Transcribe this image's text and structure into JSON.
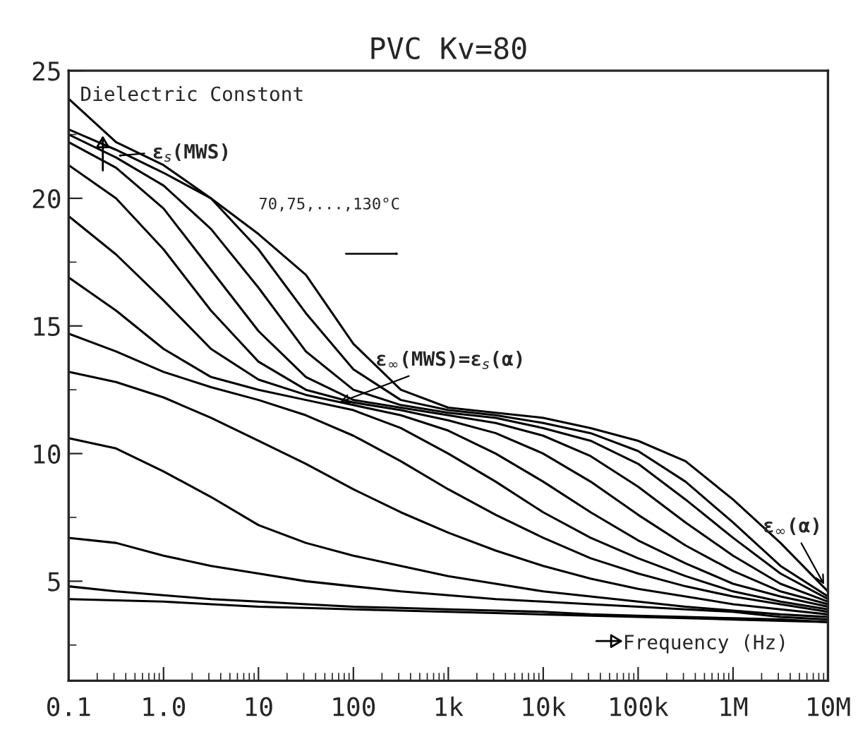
{
  "chart_data": {
    "type": "line",
    "title": "PVC Kv=80",
    "xlabel": "Frequency (Hz)",
    "ylabel": "Dielectric Constont",
    "log": "x",
    "grid": false,
    "legend": false,
    "marker": "none",
    "line_style": "solid",
    "x": [
      0.1,
      0.316,
      1,
      3.16,
      10,
      31.6,
      100,
      316,
      1000,
      3160,
      10000,
      31600,
      100000,
      316000,
      1000000,
      3160000,
      10000000
    ],
    "xlim": [
      0.1,
      10000000
    ],
    "xticks": [
      {
        "value": 0.1,
        "label": "0.1"
      },
      {
        "value": 1,
        "label": "1.0"
      },
      {
        "value": 10,
        "label": "10"
      },
      {
        "value": 100,
        "label": "100"
      },
      {
        "value": 1000,
        "label": "1k"
      },
      {
        "value": 10000,
        "label": "10k"
      },
      {
        "value": 100000,
        "label": "100k"
      },
      {
        "value": 1000000,
        "label": "1M"
      },
      {
        "value": 10000000,
        "label": "10M"
      }
    ],
    "ylim": [
      1.1,
      25
    ],
    "yticks": [
      5,
      10,
      15,
      20,
      25
    ],
    "series": [
      {
        "color": "#000000",
        "values": [
          4.3,
          4.25,
          4.2,
          4.1,
          4.0,
          3.95,
          3.9,
          3.85,
          3.8,
          3.75,
          3.7,
          3.65,
          3.6,
          3.55,
          3.5,
          3.45,
          3.4
        ]
      },
      {
        "color": "#000000",
        "values": [
          4.8,
          4.6,
          4.45,
          4.3,
          4.2,
          4.1,
          4.0,
          3.95,
          3.9,
          3.85,
          3.8,
          3.7,
          3.65,
          3.6,
          3.55,
          3.5,
          3.4
        ]
      },
      {
        "color": "#000000",
        "values": [
          6.7,
          6.5,
          6.0,
          5.6,
          5.3,
          5.0,
          4.8,
          4.6,
          4.45,
          4.3,
          4.2,
          4.1,
          4.0,
          3.9,
          3.8,
          3.6,
          3.5
        ]
      },
      {
        "color": "#000000",
        "values": [
          10.6,
          10.2,
          9.3,
          8.3,
          7.2,
          6.5,
          6.0,
          5.6,
          5.2,
          4.9,
          4.6,
          4.4,
          4.2,
          4.0,
          3.85,
          3.7,
          3.6
        ]
      },
      {
        "color": "#000000",
        "values": [
          13.2,
          12.8,
          12.2,
          11.4,
          10.5,
          9.6,
          8.6,
          7.7,
          6.9,
          6.2,
          5.6,
          5.1,
          4.7,
          4.4,
          4.1,
          3.9,
          3.7
        ]
      },
      {
        "color": "#000000",
        "values": [
          14.7,
          14.0,
          13.2,
          12.6,
          12.1,
          11.5,
          10.7,
          9.7,
          8.6,
          7.6,
          6.7,
          5.9,
          5.3,
          4.8,
          4.4,
          4.1,
          3.8
        ]
      },
      {
        "color": "#000000",
        "values": [
          16.9,
          15.6,
          14.1,
          13.0,
          12.5,
          12.1,
          11.7,
          11.0,
          10.0,
          8.9,
          7.7,
          6.7,
          5.9,
          5.2,
          4.6,
          4.2,
          3.9
        ]
      },
      {
        "color": "#000000",
        "values": [
          19.3,
          17.8,
          16.0,
          14.1,
          12.9,
          12.3,
          11.9,
          11.5,
          10.9,
          10.0,
          8.9,
          7.7,
          6.6,
          5.7,
          4.9,
          4.4,
          4.0
        ]
      },
      {
        "color": "#000000",
        "values": [
          21.3,
          20.0,
          18.0,
          15.6,
          13.6,
          12.5,
          12.0,
          11.7,
          11.3,
          10.8,
          10.0,
          8.9,
          7.6,
          6.4,
          5.4,
          4.6,
          4.1
        ]
      },
      {
        "color": "#000000",
        "values": [
          22.2,
          21.2,
          19.6,
          17.2,
          14.8,
          13.0,
          12.1,
          11.8,
          11.5,
          11.2,
          10.7,
          9.9,
          8.7,
          7.3,
          6.0,
          4.9,
          4.2
        ]
      },
      {
        "color": "#000000",
        "values": [
          22.5,
          21.6,
          20.5,
          18.8,
          16.5,
          14.0,
          12.5,
          11.9,
          11.6,
          11.4,
          11.0,
          10.5,
          9.6,
          8.2,
          6.7,
          5.3,
          4.3
        ]
      },
      {
        "color": "#000000",
        "values": [
          22.7,
          21.9,
          21.0,
          20.0,
          18.0,
          15.5,
          13.3,
          12.1,
          11.7,
          11.5,
          11.2,
          10.8,
          10.1,
          8.9,
          7.3,
          5.6,
          4.4
        ]
      },
      {
        "color": "#000000",
        "values": [
          23.9,
          22.2,
          21.3,
          20.0,
          18.6,
          17.0,
          14.3,
          12.5,
          11.8,
          11.6,
          11.4,
          11.0,
          10.5,
          9.7,
          8.2,
          6.5,
          4.6
        ]
      }
    ],
    "annotations": [
      "ε$_{s}$(MWS)",
      "70,75,...,130°C",
      {
        "text": "ε$_{∞}$(MWS)=ε$_{s}$(α)",
        "x": 60,
        "y": 11.9
      },
      {
        "text": "ε$_{∞}$(α)",
        "x": 10000000,
        "y": 4.6
      }
    ]
  }
}
